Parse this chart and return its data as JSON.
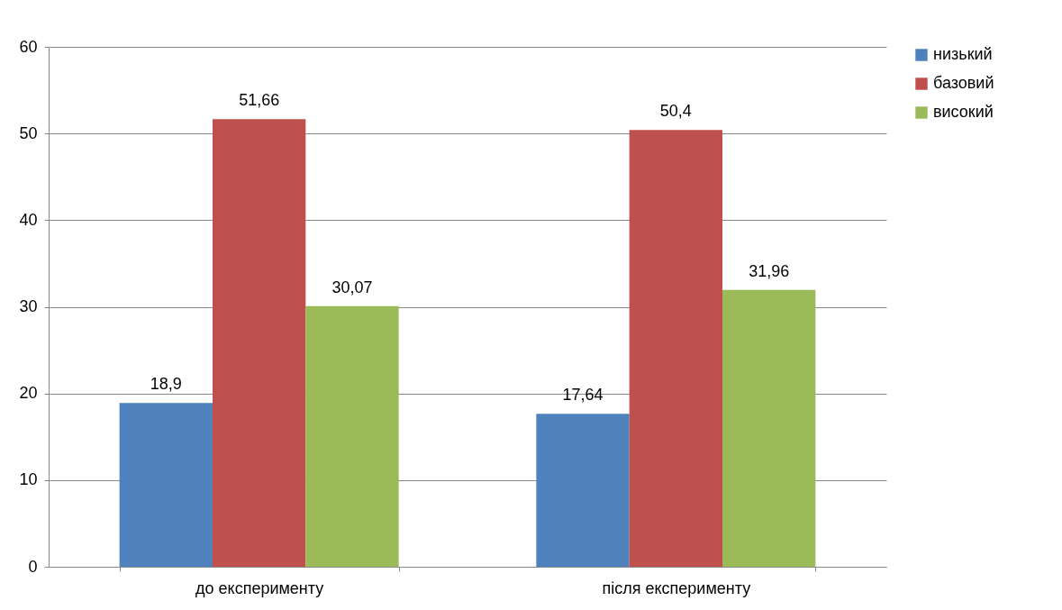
{
  "chart_data": {
    "type": "bar",
    "categories": [
      "до експерименту",
      "після експерименту"
    ],
    "series": [
      {
        "name": "низький",
        "color": "#4f81bd",
        "values": [
          18.9,
          17.64
        ],
        "value_labels": [
          "18,9",
          "17,64"
        ]
      },
      {
        "name": "базовий",
        "color": "#c0504d",
        "values": [
          51.66,
          50.4
        ],
        "value_labels": [
          "51,66",
          "50,4"
        ]
      },
      {
        "name": "високий",
        "color": "#9bbb59",
        "values": [
          30.07,
          31.96
        ],
        "value_labels": [
          "30,07",
          "31,96"
        ]
      }
    ],
    "ylim": [
      0,
      60
    ],
    "yticks": [
      0,
      10,
      20,
      30,
      40,
      50,
      60
    ],
    "grid": "y",
    "legend": "right"
  }
}
